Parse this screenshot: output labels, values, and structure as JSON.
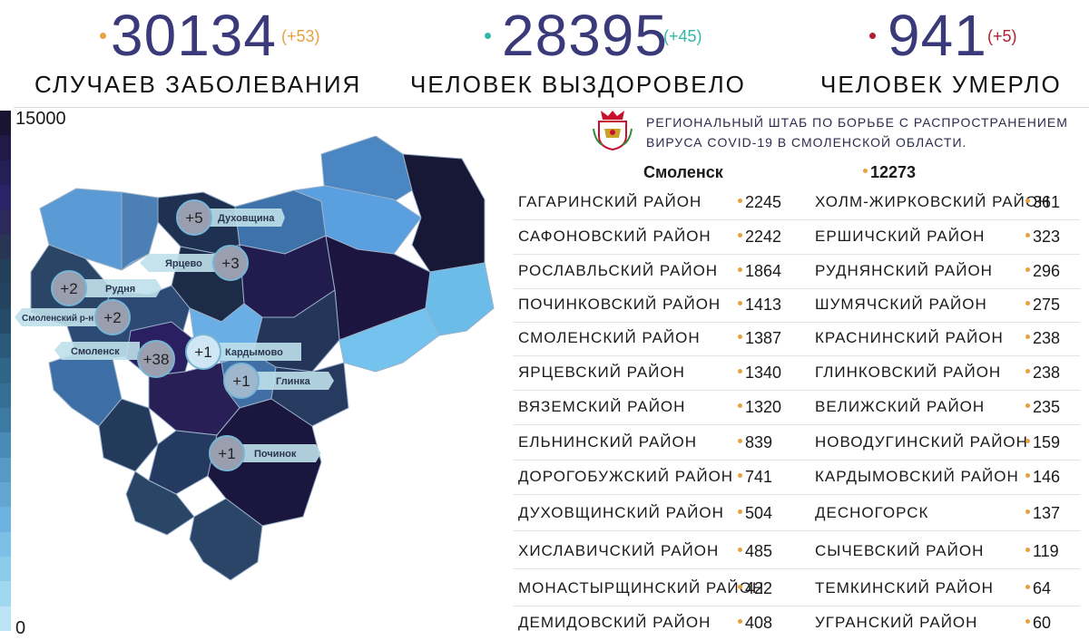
{
  "stats": {
    "cases": {
      "value": "30134",
      "delta": "(+53)",
      "label": "Случаев заболевания",
      "color": "#3a3a7a",
      "delta_color": "#e8a040",
      "dot_color": "#e8a040"
    },
    "recovered": {
      "value": "28395",
      "delta": "(+45)",
      "label": "Человек выздоровело",
      "color": "#3a3a7a",
      "delta_color": "#2fb8a8",
      "dot_color": "#2fb8a8"
    },
    "died": {
      "value": "941",
      "delta": "(+5)",
      "label": "Человек умерло",
      "color": "#3a3a7a",
      "delta_color": "#b02030",
      "dot_color": "#b02030"
    }
  },
  "scale": {
    "max": "15000",
    "min": "0"
  },
  "header": {
    "line1": "Региональный штаб по борьбе с распространением",
    "line2": "вируса COVID-19 в Смоленской области."
  },
  "city": {
    "name": "Смоленск",
    "value": "12273"
  },
  "districts_left": [
    {
      "name": "Гагаринский район",
      "value": "2245"
    },
    {
      "name": "Сафоновский район",
      "value": "2242"
    },
    {
      "name": "Рославльский район",
      "value": "1864"
    },
    {
      "name": "Починковский район",
      "value": "1413"
    },
    {
      "name": "Смоленский район",
      "value": "1387"
    },
    {
      "name": "Ярцевский район",
      "value": "1340"
    },
    {
      "name": "Вяземский район",
      "value": "1320"
    },
    {
      "name": "Ельнинский район",
      "value": "839"
    },
    {
      "name": "Дорогобужский район",
      "value": "741"
    },
    {
      "name": "Духовщинский район",
      "value": "504"
    },
    {
      "name": "Хиславичский район",
      "value": "485"
    },
    {
      "name": "Монастырщинский район",
      "value": "422"
    },
    {
      "name": "Демидовский район",
      "value": "408"
    }
  ],
  "districts_right": [
    {
      "name": "Холм-Жирковский район",
      "value": "361"
    },
    {
      "name": "Ершичский район",
      "value": "323"
    },
    {
      "name": "Руднянский район",
      "value": "296"
    },
    {
      "name": "Шумячский район",
      "value": "275"
    },
    {
      "name": "Краснинский район",
      "value": "238"
    },
    {
      "name": "Глинковский район",
      "value": "238"
    },
    {
      "name": "Велижский район",
      "value": "235"
    },
    {
      "name": "Новодугинский район",
      "value": "159"
    },
    {
      "name": "Кардымовский район",
      "value": "146"
    },
    {
      "name": "Десногорск",
      "value": "137"
    },
    {
      "name": "Сычевский район",
      "value": "119"
    },
    {
      "name": "Темкинский район",
      "value": "64"
    },
    {
      "name": "Угранский район",
      "value": "60"
    }
  ],
  "map_labels": [
    {
      "badge": "+5",
      "name": "Духовщина"
    },
    {
      "badge": "+3",
      "name": "Ярцево"
    },
    {
      "badge": "+2",
      "name": "Рудня"
    },
    {
      "badge": "+2",
      "name": "Смоленский р-н"
    },
    {
      "badge": "+38",
      "name": "Смоленск"
    },
    {
      "badge": "+1",
      "name": "Кардымово"
    },
    {
      "badge": "+1",
      "name": "Глинка"
    },
    {
      "badge": "+1",
      "name": "Починок"
    }
  ],
  "scale_colors": [
    "#1a1433",
    "#1f1a46",
    "#241f57",
    "#2a2368",
    "#2b2a5a",
    "#283553",
    "#23405a",
    "#24435f",
    "#244c6a",
    "#2a5a7a",
    "#2f6586",
    "#356f94",
    "#3d7aa3",
    "#4a8ab6",
    "#5899c5",
    "#63a6d2",
    "#6db2de",
    "#7cc0e8",
    "#8ccceb",
    "#a0d8f0",
    "#bde4f6"
  ]
}
